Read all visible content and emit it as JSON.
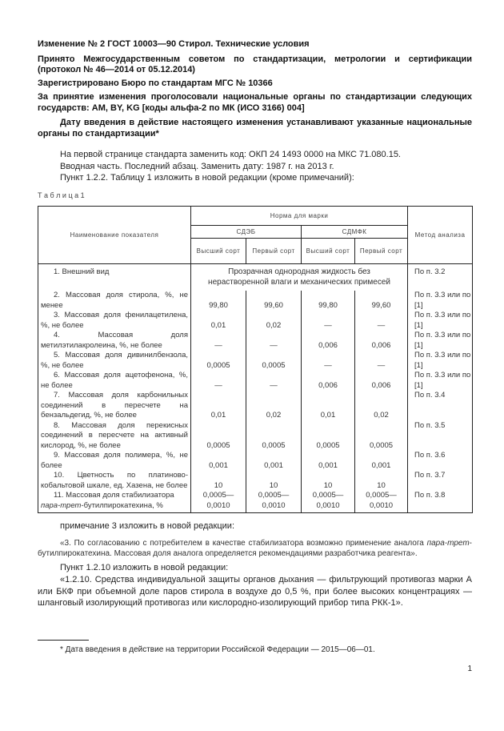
{
  "header": {
    "title": "Изменение № 2 ГОСТ 10003—90 Стирол. Технические условия",
    "adopted": "Принято Межгосударственным советом по стандартизации, метрологии и сертификации (протокол № 46—2014 от 05.12.2014)",
    "registered": "Зарегистрировано Бюро по стандартам МГС № 10366",
    "voted": "За принятие изменения проголосовали национальные органы по стандартизации следующих государств: AM, BY, KG [коды альфа-2 по МК (ИСО 3166) 004]",
    "effective": "Дату введения в действие настоящего изменения устанавливают указанные национальные органы по стандартизации*"
  },
  "body": {
    "p1": "На первой странице стандарта заменить код: ОКП 24 1493 0000 на МКС 71.080.15.",
    "p2": "Вводная часть. Последний абзац. Заменить дату: 1987 г. на 2013 г.",
    "p3": "Пункт 1.2.2. Таблицу 1 изложить в новой редакции (кроме примечаний):"
  },
  "table": {
    "caption": "Т а б л и ц а 1",
    "col_name": "Наименование показателя",
    "col_norm": "Норма для марки",
    "grade_1": "СДЭБ",
    "grade_2": "СДМФК",
    "col_method": "Метод анализа",
    "sub": [
      "Высший сорт",
      "Первый сорт",
      "Высший сорт",
      "Первый сорт"
    ],
    "row1": {
      "name": "1. Внешний вид",
      "value": "Прозрачная однородная жидкость без нерастворенной влаги и механических примесей",
      "method": "По п. 3.2"
    },
    "rows": [
      {
        "name": "2. Массовая доля стирола, %, не менее",
        "values": [
          "99,80",
          "99,60",
          "99,80",
          "99,60"
        ],
        "method": "По п. 3.3 или по [1]"
      },
      {
        "name": "3. Массовая доля фенилацетилена, %, не более",
        "values": [
          "0,01",
          "0,02",
          "—",
          "—"
        ],
        "method": "По п. 3.3 или по [1]"
      },
      {
        "name": "4. Массовая доля метилэтилакролеина, %, не более",
        "values": [
          "—",
          "—",
          "0,006",
          "0,006"
        ],
        "method": "По п. 3.3 или по [1]"
      },
      {
        "name": "5. Массовая доля дивинилбензола, %, не более",
        "values": [
          "0,0005",
          "0,0005",
          "—",
          "—"
        ],
        "method": "По п. 3.3 или по [1]"
      },
      {
        "name": "6. Массовая доля ацетофенона, %, не более",
        "values": [
          "—",
          "—",
          "0,006",
          "0,006"
        ],
        "method": "По п. 3.3 или по [1]"
      },
      {
        "name": "7. Массовая доля карбонильных соединений в пересчете на бензальдегид, %, не более",
        "values": [
          "0,01",
          "0,02",
          "0,01",
          "0,02"
        ],
        "method": "По п. 3.4"
      },
      {
        "name": "8. Массовая доля перекисных соединений в пересчете на активный кислород, %, не более",
        "values": [
          "0,0005",
          "0,0005",
          "0,0005",
          "0,0005"
        ],
        "method": "По п. 3.5"
      },
      {
        "name": "9. Массовая доля полимера, %, не более",
        "values": [
          "0,001",
          "0,001",
          "0,001",
          "0,001"
        ],
        "method": "По п. 3.6"
      },
      {
        "name": "10. Цветность по платиново-кобальтовой шкале, ед. Хазена, не более",
        "values": [
          "10",
          "10",
          "10",
          "10"
        ],
        "method": "По п. 3.7"
      }
    ],
    "row11": {
      "name_a": "11. Массовая доля стабилизатора",
      "name_italic": "пара-трет",
      "name_b": "-бутилпирокатехина, %",
      "value": "0,0005— 0,0010",
      "method": "По п. 3.8"
    }
  },
  "notes": {
    "n1": "примечание 3 изложить в новой редакции:",
    "n2a": "«3. По согласованию с потребителем в качестве стабилизатора возможно применение аналога ",
    "n2i": "пара-трет",
    "n2b": "-бутилпирокатехина. Массовая доля аналога определяется рекомендациями разработчика реагента».",
    "n3": "Пункт 1.2.10 изложить в новой редакции:",
    "n4": "«1.2.10. Средства индивидуальной защиты органов дыхания — фильтрующий противогаз марки А или БКФ при объемной доле паров стирола в воздухе до 0,5 %, при более высоких концентрациях — шланговый изолирующий противогаз или кислородно-изолирующий прибор типа РКК-1»."
  },
  "footnote": "* Дата введения в действие на территории Российской Федерации — 2015—06—01.",
  "page_number": "1"
}
